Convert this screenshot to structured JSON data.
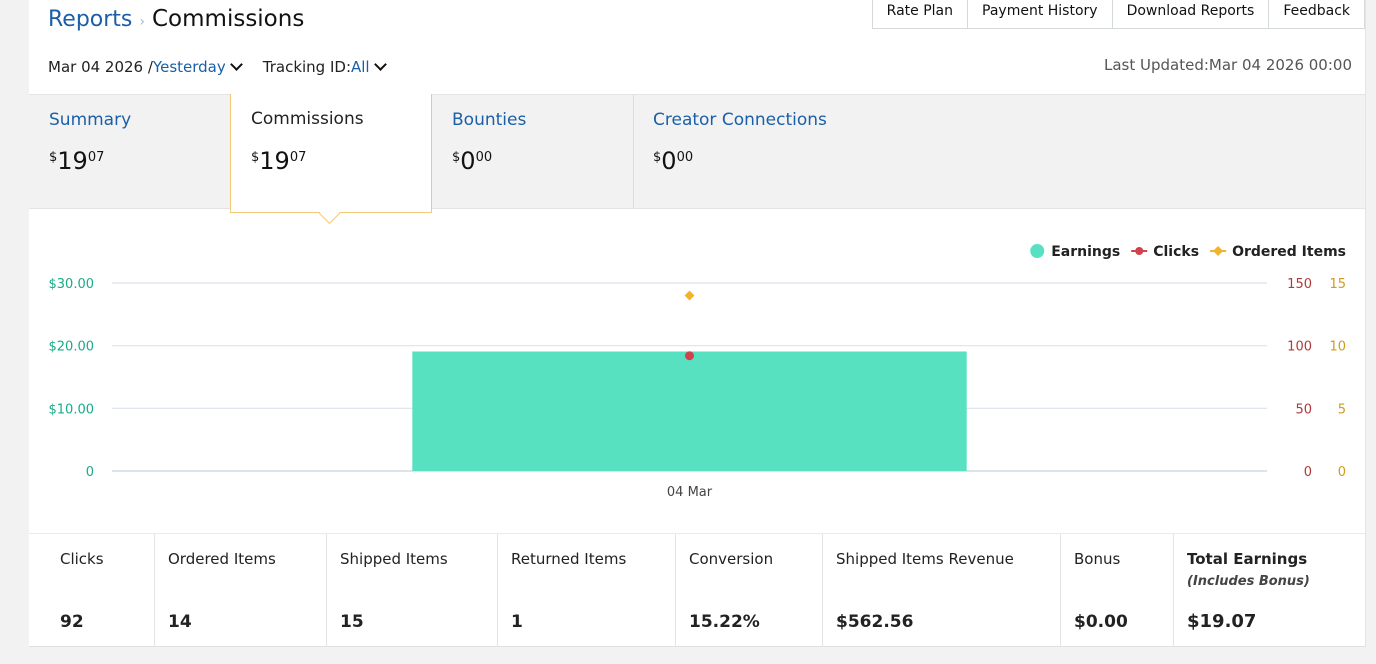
{
  "breadcrumb": {
    "parent": "Reports",
    "separator": "›",
    "current": "Commissions"
  },
  "top_nav": [
    "Rate Plan",
    "Payment History",
    "Download Reports",
    "Feedback"
  ],
  "filters": {
    "date": "Mar 04 2026 /",
    "period": "Yesterday",
    "tracking_label": "Tracking ID:",
    "tracking_value": "All"
  },
  "last_updated": "Last Updated:Mar 04 2026 00:00",
  "tabs": [
    {
      "label": "Summary",
      "currency": "$",
      "dollars": "19",
      "cents": "07"
    },
    {
      "label": "Commissions",
      "currency": "$",
      "dollars": "19",
      "cents": "07"
    },
    {
      "label": "Bounties",
      "currency": "$",
      "dollars": "0",
      "cents": "00"
    },
    {
      "label": "Creator Connections",
      "currency": "$",
      "dollars": "0",
      "cents": "00"
    }
  ],
  "chart_data": {
    "type": "bar",
    "categories": [
      "04 Mar"
    ],
    "series": [
      {
        "name": "Earnings",
        "type": "bar",
        "axis": "left",
        "values": [
          19.07
        ],
        "color": "#57e1c1"
      },
      {
        "name": "Clicks",
        "type": "scatter",
        "axis": "right1",
        "values": [
          92
        ],
        "color": "#d0424d"
      },
      {
        "name": "Ordered Items",
        "type": "scatter",
        "axis": "right2",
        "values": [
          14
        ],
        "color": "#f0b42f"
      }
    ],
    "y_left": {
      "ticks": [
        "0",
        "$10.00",
        "$20.00",
        "$30.00"
      ],
      "range": [
        0,
        30
      ],
      "color": "#1aab8a"
    },
    "y_right1": {
      "ticks": [
        "0",
        "50",
        "100",
        "150"
      ],
      "range": [
        0,
        150
      ],
      "color": "#b03a3a"
    },
    "y_right2": {
      "ticks": [
        "0",
        "5",
        "10",
        "15"
      ],
      "range": [
        0,
        15
      ],
      "color": "#d39a1c"
    },
    "grid": true,
    "legend_position": "top-right"
  },
  "stats": [
    {
      "label": "Clicks",
      "value": "92"
    },
    {
      "label": "Ordered Items",
      "value": "14"
    },
    {
      "label": "Shipped Items",
      "value": "15"
    },
    {
      "label": "Returned Items",
      "value": "1"
    },
    {
      "label": "Conversion",
      "value": "15.22%"
    },
    {
      "label": "Shipped Items Revenue",
      "value": "$562.56"
    },
    {
      "label": "Bonus",
      "value": "$0.00"
    },
    {
      "label": "Total Earnings",
      "sublabel": "(Includes Bonus)",
      "value": "$19.07"
    }
  ]
}
